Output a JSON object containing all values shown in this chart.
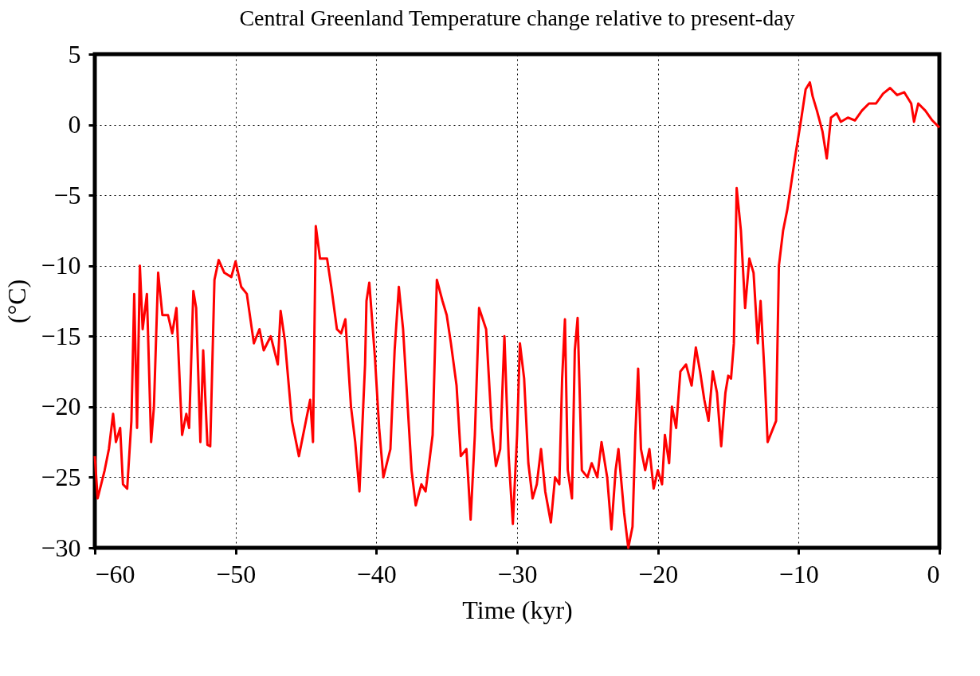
{
  "chart_data": {
    "type": "line",
    "title": "Central Greenland Temperature change relative to present-day",
    "xlabel": "Time (kyr)",
    "ylabel": "(°C)",
    "xlim": [
      -60,
      0
    ],
    "xticks": [
      -60,
      -50,
      -40,
      -30,
      -20,
      -10,
      0
    ],
    "ylim": [
      -30,
      5
    ],
    "yticks": [
      -30,
      -25,
      -20,
      -15,
      -10,
      -5,
      0,
      5
    ],
    "grid": true,
    "line_style": "solid",
    "marker": "none",
    "x": [
      -60,
      -59.8,
      -59.3,
      -59,
      -58.7,
      -58.5,
      -58.2,
      -58,
      -57.7,
      -57.4,
      -57.2,
      -57,
      -56.8,
      -56.6,
      -56.3,
      -56,
      -55.8,
      -55.5,
      -55.2,
      -54.8,
      -54.5,
      -54.2,
      -53.8,
      -53.5,
      -53.3,
      -53,
      -52.8,
      -52.5,
      -52.3,
      -52,
      -51.8,
      -51.5,
      -51.2,
      -50.8,
      -50.3,
      -50,
      -49.6,
      -49.2,
      -48.7,
      -48.3,
      -48,
      -47.5,
      -47,
      -46.8,
      -46.5,
      -46,
      -45.5,
      -45,
      -44.7,
      -44.5,
      -44.3,
      -44,
      -43.5,
      -43.2,
      -42.8,
      -42.5,
      -42.2,
      -41.8,
      -41.5,
      -41.2,
      -40.8,
      -40.7,
      -40.5,
      -40.1,
      -39.8,
      -39.5,
      -39,
      -38.7,
      -38.4,
      -38.1,
      -37.8,
      -37.5,
      -37.2,
      -36.8,
      -36.5,
      -36,
      -35.7,
      -35.3,
      -35,
      -34.7,
      -34.3,
      -34,
      -33.6,
      -33.3,
      -33,
      -32.7,
      -32.2,
      -31.8,
      -31.5,
      -31.2,
      -30.9,
      -30.6,
      -30.3,
      -30,
      -29.8,
      -29.5,
      -29.2,
      -28.9,
      -28.6,
      -28.3,
      -28,
      -27.6,
      -27.3,
      -27,
      -26.8,
      -26.6,
      -26.4,
      -26.1,
      -25.9,
      -25.7,
      -25.4,
      -25,
      -24.7,
      -24.3,
      -24,
      -23.6,
      -23.3,
      -23,
      -22.8,
      -22.4,
      -22.1,
      -21.8,
      -21.6,
      -21.4,
      -21.2,
      -20.9,
      -20.6,
      -20.3,
      -20,
      -19.7,
      -19.5,
      -19.2,
      -19,
      -18.7,
      -18.4,
      -18,
      -17.6,
      -17.3,
      -17,
      -16.7,
      -16.4,
      -16.1,
      -15.8,
      -15.5,
      -15.2,
      -15,
      -14.8,
      -14.6,
      -14.4,
      -14.1,
      -13.8,
      -13.5,
      -13.2,
      -12.9,
      -12.7,
      -12.4,
      -12.2,
      -11.8,
      -11.6,
      -11.4,
      -11.1,
      -10.8,
      -10.5,
      -10.2,
      -9.8,
      -9.5,
      -9.2,
      -9,
      -8.7,
      -8.3,
      -8,
      -7.7,
      -7.3,
      -7,
      -6.5,
      -6,
      -5.5,
      -5,
      -4.5,
      -4,
      -3.5,
      -3,
      -2.5,
      -2,
      -1.8,
      -1.5,
      -1,
      -0.5,
      0
    ],
    "series": [
      {
        "color": "#ff0000",
        "values": [
          -23.5,
          -26.5,
          -24.5,
          -23,
          -20.5,
          -22.5,
          -21.5,
          -25.5,
          -25.8,
          -21,
          -12,
          -21.5,
          -10,
          -14.5,
          -12,
          -22.5,
          -20,
          -10.5,
          -13.5,
          -13.5,
          -14.8,
          -13,
          -22,
          -20.5,
          -21.5,
          -11.8,
          -13,
          -22.5,
          -16,
          -22.7,
          -22.8,
          -11,
          -9.6,
          -10.5,
          -10.8,
          -9.7,
          -11.5,
          -12,
          -15.5,
          -14.5,
          -16,
          -15,
          -17,
          -13.2,
          -15.3,
          -21,
          -23.5,
          -21,
          -19.5,
          -22.5,
          -7.2,
          -9.5,
          -9.5,
          -11.5,
          -14.5,
          -14.8,
          -13.8,
          -20,
          -22.5,
          -26,
          -17,
          -12.5,
          -11.2,
          -16.5,
          -21.5,
          -25,
          -23,
          -16,
          -11.5,
          -14.5,
          -19.5,
          -24.5,
          -27,
          -25.5,
          -26,
          -22,
          -11,
          -12.5,
          -13.5,
          -15.5,
          -18.5,
          -23.5,
          -23,
          -28,
          -22,
          -13,
          -14.5,
          -21.5,
          -24.2,
          -23,
          -15,
          -23.5,
          -28.3,
          -22,
          -15.5,
          -18,
          -24,
          -26.5,
          -25.5,
          -23,
          -26,
          -28.2,
          -25,
          -25.5,
          -18,
          -13.8,
          -24.5,
          -26.5,
          -16,
          -13.7,
          -24.5,
          -25,
          -24,
          -25,
          -22.5,
          -25,
          -28.7,
          -24.5,
          -23,
          -27.5,
          -30,
          -28.5,
          -22,
          -17.3,
          -23,
          -24.5,
          -23,
          -25.8,
          -24.5,
          -25.5,
          -22,
          -24,
          -20,
          -21.5,
          -17.5,
          -17,
          -18.5,
          -15.8,
          -17.5,
          -19.5,
          -21,
          -17.5,
          -19,
          -22.8,
          -19,
          -17.8,
          -18,
          -15.5,
          -4.5,
          -7.5,
          -13,
          -9.5,
          -10.5,
          -15.5,
          -12.5,
          -18,
          -22.5,
          -21.5,
          -21,
          -10,
          -7.5,
          -6,
          -4,
          -2,
          0.5,
          2.5,
          3,
          2,
          1,
          -0.5,
          -2.4,
          0.5,
          0.8,
          0.2,
          0.5,
          0.3,
          1,
          1.5,
          1.5,
          2.2,
          2.6,
          2.1,
          2.3,
          1.5,
          0.2,
          1.5,
          1,
          0.3,
          -0.2
        ]
      }
    ]
  }
}
